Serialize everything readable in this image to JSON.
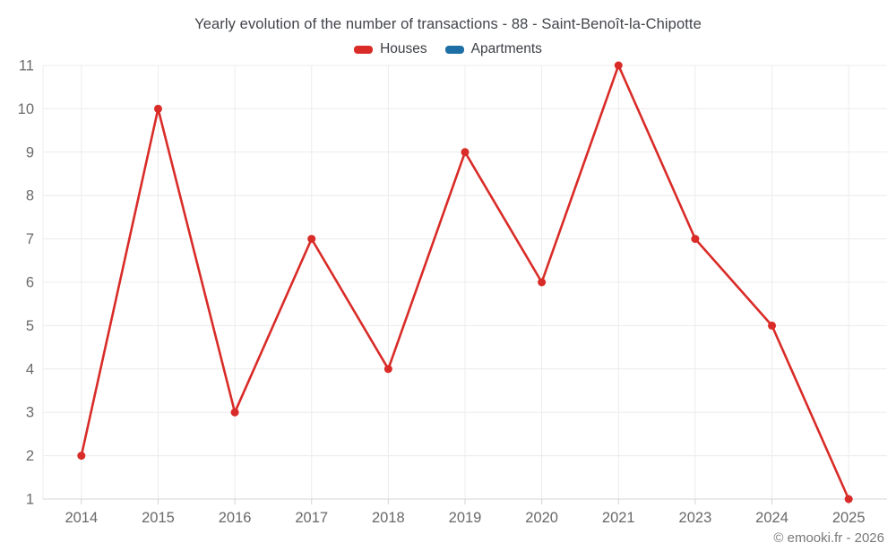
{
  "title": "Yearly evolution of the number of transactions - 88 - Saint-Benoît-la-Chipotte",
  "legend": {
    "items": [
      {
        "label": "Houses",
        "color": "#d92b27"
      },
      {
        "label": "Apartments",
        "color": "#1d6fa5"
      }
    ]
  },
  "footer": {
    "text": "© emooki.fr - 2026"
  },
  "chart_data": {
    "type": "line",
    "title": "Yearly evolution of the number of transactions - 88 - Saint-Benoît-la-Chipotte",
    "categories": [
      "2014",
      "2015",
      "2016",
      "2017",
      "2018",
      "2019",
      "2020",
      "2021",
      "2023",
      "2024",
      "2025"
    ],
    "series": [
      {
        "name": "Houses",
        "color": "#d92b27",
        "values": [
          2,
          10,
          3,
          7,
          4,
          9,
          6,
          11,
          7,
          5,
          1
        ]
      },
      {
        "name": "Apartments",
        "color": "#1d6fa5",
        "values": []
      }
    ],
    "xlabel": "",
    "ylabel": "",
    "ylim": [
      1,
      11
    ],
    "yticks": [
      1,
      2,
      3,
      4,
      5,
      6,
      7,
      8,
      9,
      10,
      11
    ],
    "grid": true,
    "legend_position": "top",
    "marker": "circle",
    "colors": {
      "gridline": "#ececec",
      "axis_line": "#d4d4d4",
      "tick_label": "#68696b"
    }
  }
}
